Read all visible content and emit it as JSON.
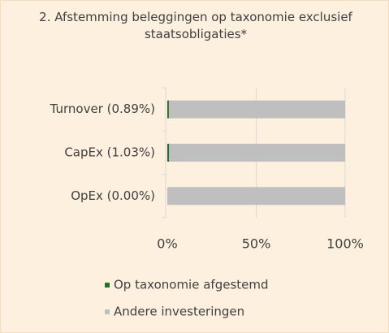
{
  "chart_data": {
    "type": "stacked_bar_horizontal",
    "title": "2. Afstemming beleggingen op taxonomie exclusief staatsobligaties*",
    "categories": [
      "Turnover (0.89%)",
      "CapEx (1.03%)",
      "OpEx (0.00%)"
    ],
    "series": [
      {
        "name": "Op taxonomie afgestemd",
        "color": "#2e6b2a",
        "values": [
          0.89,
          1.03,
          0
        ]
      },
      {
        "name": "Andere investeringen",
        "color": "#bfbfbf",
        "values": [
          99.11,
          98.97,
          100
        ]
      }
    ],
    "xlim": [
      0,
      100
    ],
    "xticks": [
      {
        "value": 0,
        "label": "0%"
      },
      {
        "value": 50,
        "label": "50%"
      },
      {
        "value": 100,
        "label": "100%"
      }
    ],
    "grid": true
  }
}
